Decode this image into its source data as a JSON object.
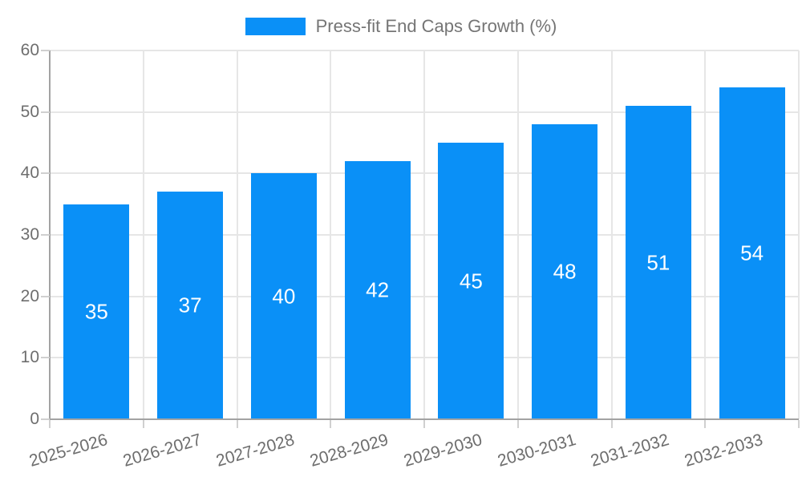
{
  "chart_data": {
    "type": "bar",
    "title": "",
    "legend": {
      "label": "Press-fit End Caps Growth (%)",
      "position": "top"
    },
    "categories": [
      "2025-2026",
      "2026-2027",
      "2027-2028",
      "2028-2029",
      "2029-2030",
      "2030-2031",
      "2031-2032",
      "2032-2033"
    ],
    "values": [
      35,
      37,
      40,
      42,
      45,
      48,
      51,
      54
    ],
    "value_labels": [
      "35",
      "37",
      "40",
      "42",
      "45",
      "48",
      "51",
      "54"
    ],
    "xlabel": "",
    "ylabel": "",
    "ylim": [
      0,
      60
    ],
    "yticks": [
      0,
      10,
      20,
      30,
      40,
      50,
      60
    ],
    "grid": true,
    "legend_position": "top",
    "colors": {
      "bar": "#0a90f7",
      "bar_value_text": "#ffffff",
      "tick_text": "#6e6e6e",
      "legend_text": "#757575",
      "axis_line": "#a3a3a3",
      "gridline": "#e6e6e6",
      "tick_mark": "#d0d0d0",
      "background": "#ffffff"
    }
  }
}
